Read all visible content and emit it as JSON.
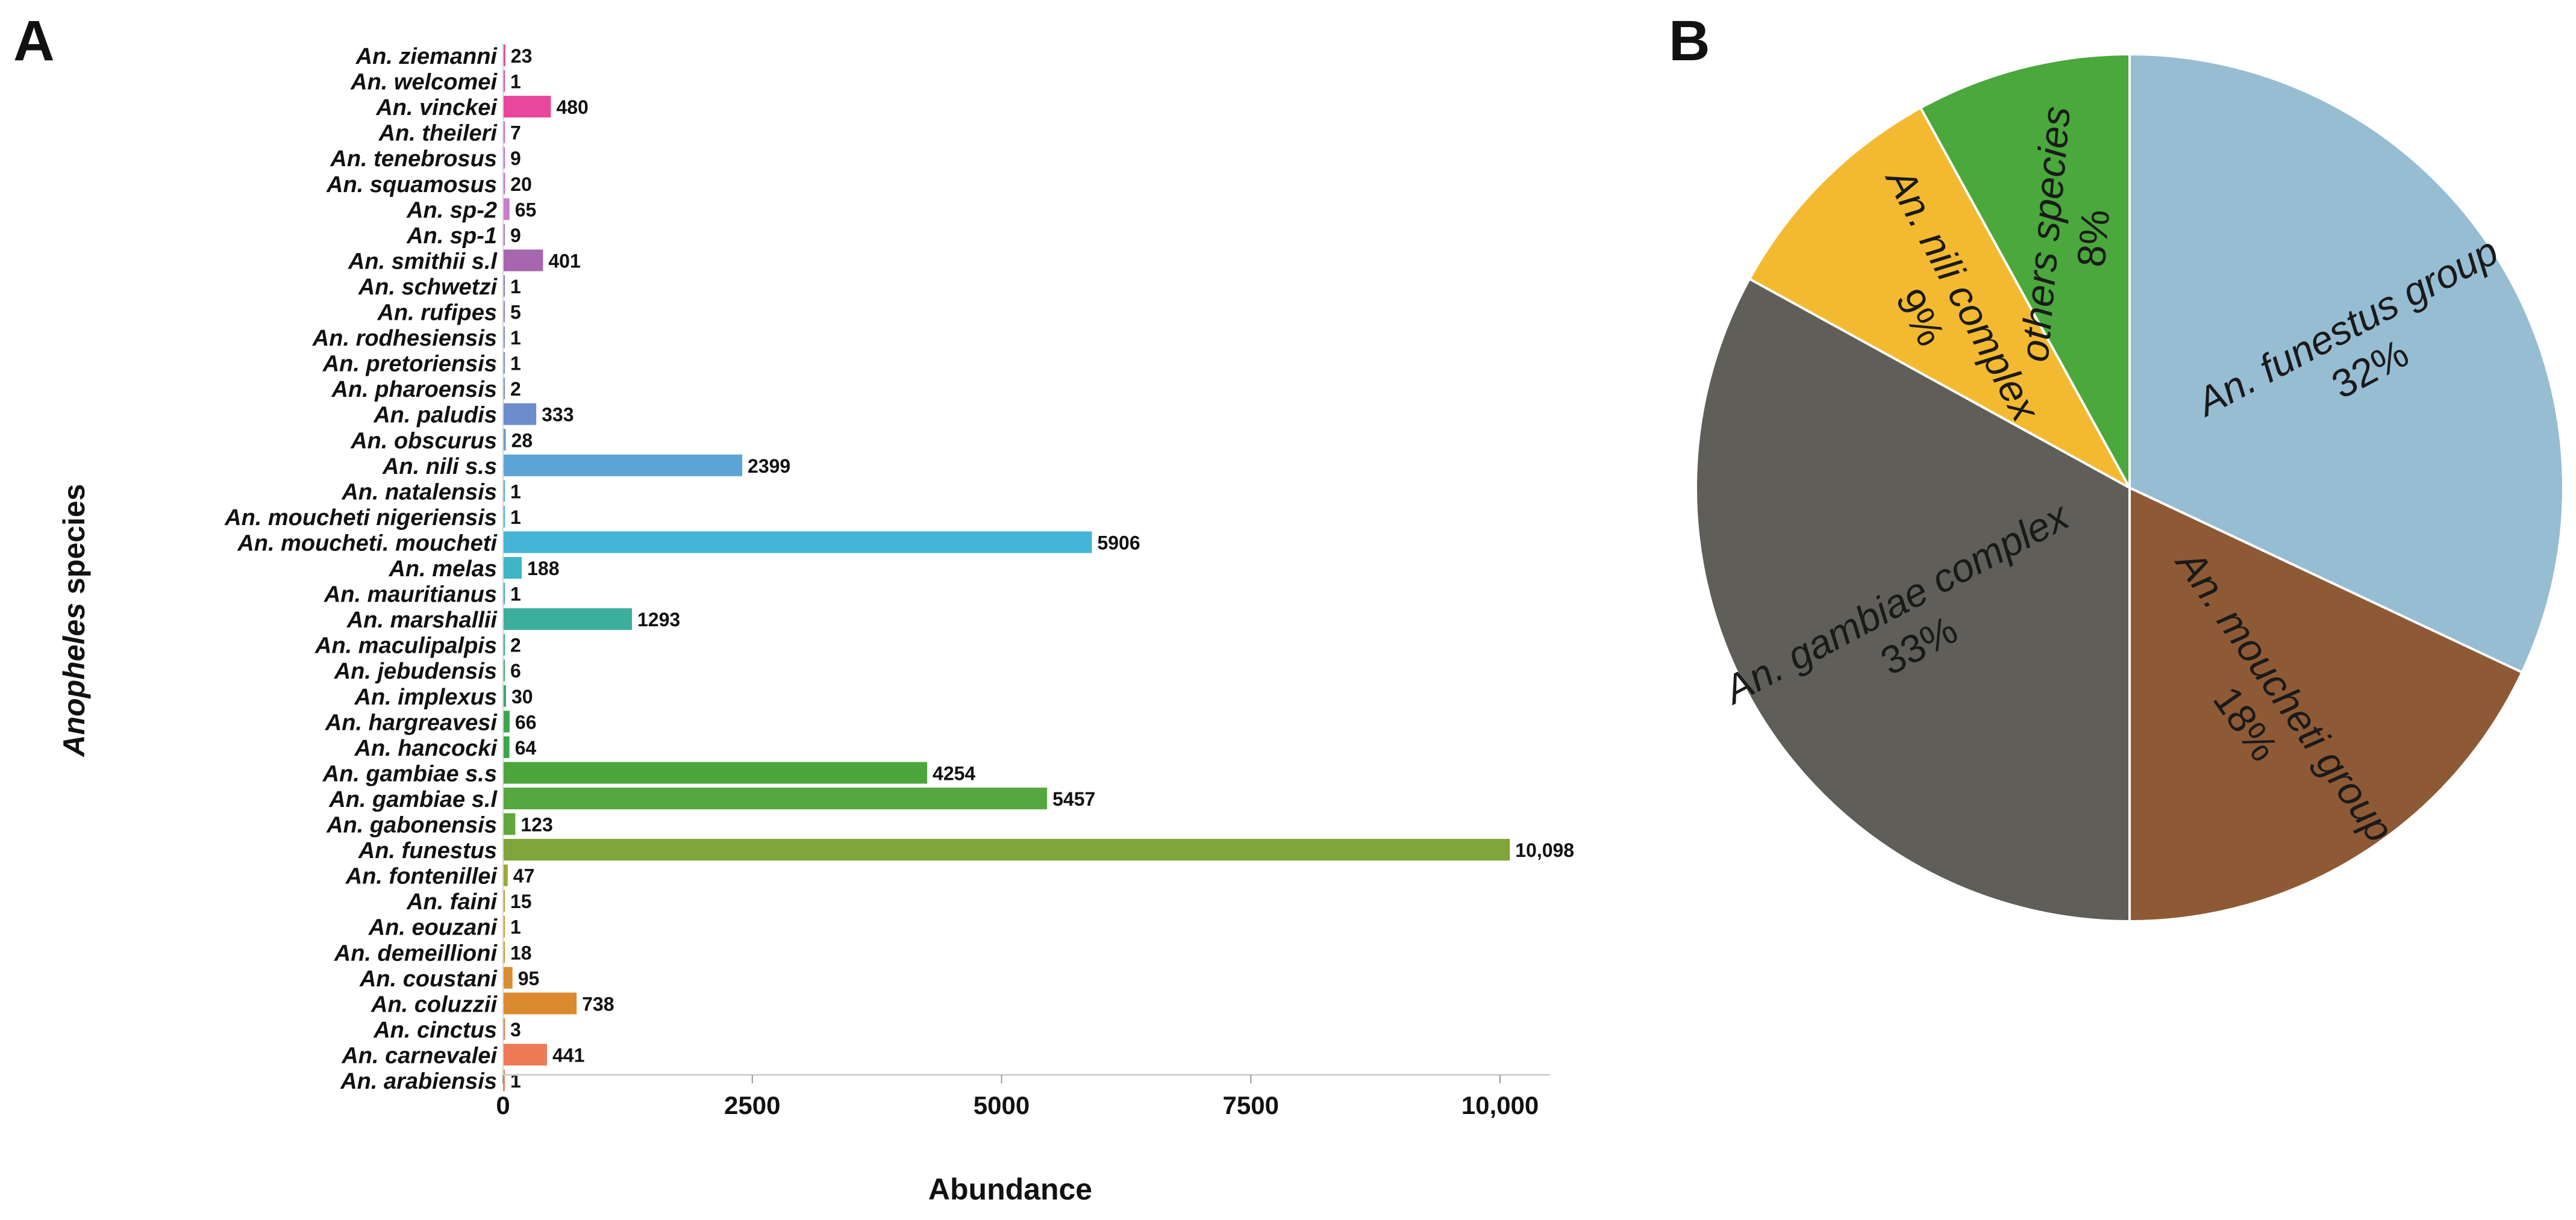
{
  "panels": {
    "a_label": "A",
    "b_label": "B"
  },
  "chart_data": [
    {
      "type": "bar",
      "orientation": "horizontal",
      "title": "",
      "ylabel_italic": "Anopheles",
      "ylabel_rest": " species",
      "xlabel": "Abundance",
      "xlim": [
        0,
        10500
      ],
      "xticks": [
        0,
        2500,
        5000,
        7500,
        10000
      ],
      "xtick_labels": [
        "0",
        "2500",
        "5000",
        "7500",
        "10,000"
      ],
      "categories": [
        "An. ziemanni",
        "An. welcomei",
        "An. vinckei",
        "An. theileri",
        "An. tenebrosus",
        "An. squamosus",
        "An. sp-2",
        "An. sp-1",
        "An. smithii s.l",
        "An. schwetzi",
        "An. rufipes",
        "An. rodhesiensis",
        "An. pretoriensis",
        "An. pharoensis",
        "An. paludis",
        "An. obscurus",
        "An. nili s.s",
        "An. natalensis",
        "An. moucheti nigeriensis",
        "An. moucheti. moucheti",
        "An. melas",
        "An. mauritianus",
        "An. marshallii",
        "An. maculipalpis",
        "An. jebudensis",
        "An. implexus",
        "An. hargreavesi",
        "An. hancocki",
        "An. gambiae s.s",
        "An. gambiae s.l",
        "An. gabonensis",
        "An. funestus",
        "An. fontenillei",
        "An. faini",
        "An. eouzani",
        "An. demeillioni",
        "An. coustani",
        "An. coluzzii",
        "An. cinctus",
        "An. carnevalei",
        "An. arabiensis"
      ],
      "values": [
        23,
        1,
        480,
        7,
        9,
        20,
        65,
        9,
        401,
        1,
        5,
        1,
        1,
        2,
        333,
        28,
        2399,
        1,
        1,
        5906,
        188,
        1,
        1293,
        2,
        6,
        30,
        66,
        64,
        4254,
        5457,
        123,
        10098,
        47,
        15,
        1,
        18,
        95,
        738,
        3,
        441,
        1
      ],
      "value_labels": [
        "23",
        "1",
        "480",
        "7",
        "9",
        "20",
        "65",
        "9",
        "401",
        "1",
        "5",
        "1",
        "1",
        "2",
        "333",
        "28",
        "2399",
        "1",
        "1",
        "5906",
        "188",
        "1",
        "1293",
        "2",
        "6",
        "30",
        "66",
        "64",
        "4254",
        "5457",
        "123",
        "10,098",
        "47",
        "15",
        "1",
        "18",
        "95",
        "738",
        "3",
        "441",
        "1"
      ],
      "colors": [
        "#e8479c",
        "#e8479c",
        "#e8479c",
        "#d867b4",
        "#cf6ec0",
        "#c877c6",
        "#c67fc8",
        "#b679c2",
        "#a766b0",
        "#8f80c2",
        "#8a89cc",
        "#8a8fd0",
        "#7a8fcc",
        "#7392cc",
        "#6d8ccb",
        "#6a9bd2",
        "#5da4d6",
        "#56aad7",
        "#4fb0d9",
        "#45b5d7",
        "#3fb6c8",
        "#3cb5b2",
        "#3cae9c",
        "#3caf88",
        "#3bad74",
        "#3baa5e",
        "#3aa852",
        "#3aa64a",
        "#4ca63c",
        "#55a83d",
        "#62a73a",
        "#7ea63a",
        "#9ea838",
        "#b0a536",
        "#c2a234",
        "#cf9a32",
        "#d88e30",
        "#dc8a2f",
        "#e8784a",
        "#ee7a56",
        "#ef7f5c"
      ]
    },
    {
      "type": "pie",
      "slices": [
        {
          "label": "An. funestus group",
          "pct_label": "32%",
          "value": 32,
          "color": "#97bdd3"
        },
        {
          "label": "An. moucheti group",
          "pct_label": "18%",
          "value": 18,
          "color": "#8e5a35"
        },
        {
          "label": "An. gambiae complex",
          "pct_label": "33%",
          "value": 33,
          "color": "#5f5e59"
        },
        {
          "label": "An. nili complex",
          "pct_label": "9%",
          "value": 9,
          "color": "#f3ba31"
        },
        {
          "label": "others species",
          "pct_label": "8%",
          "value": 8,
          "color": "#4aa83c"
        }
      ]
    }
  ]
}
